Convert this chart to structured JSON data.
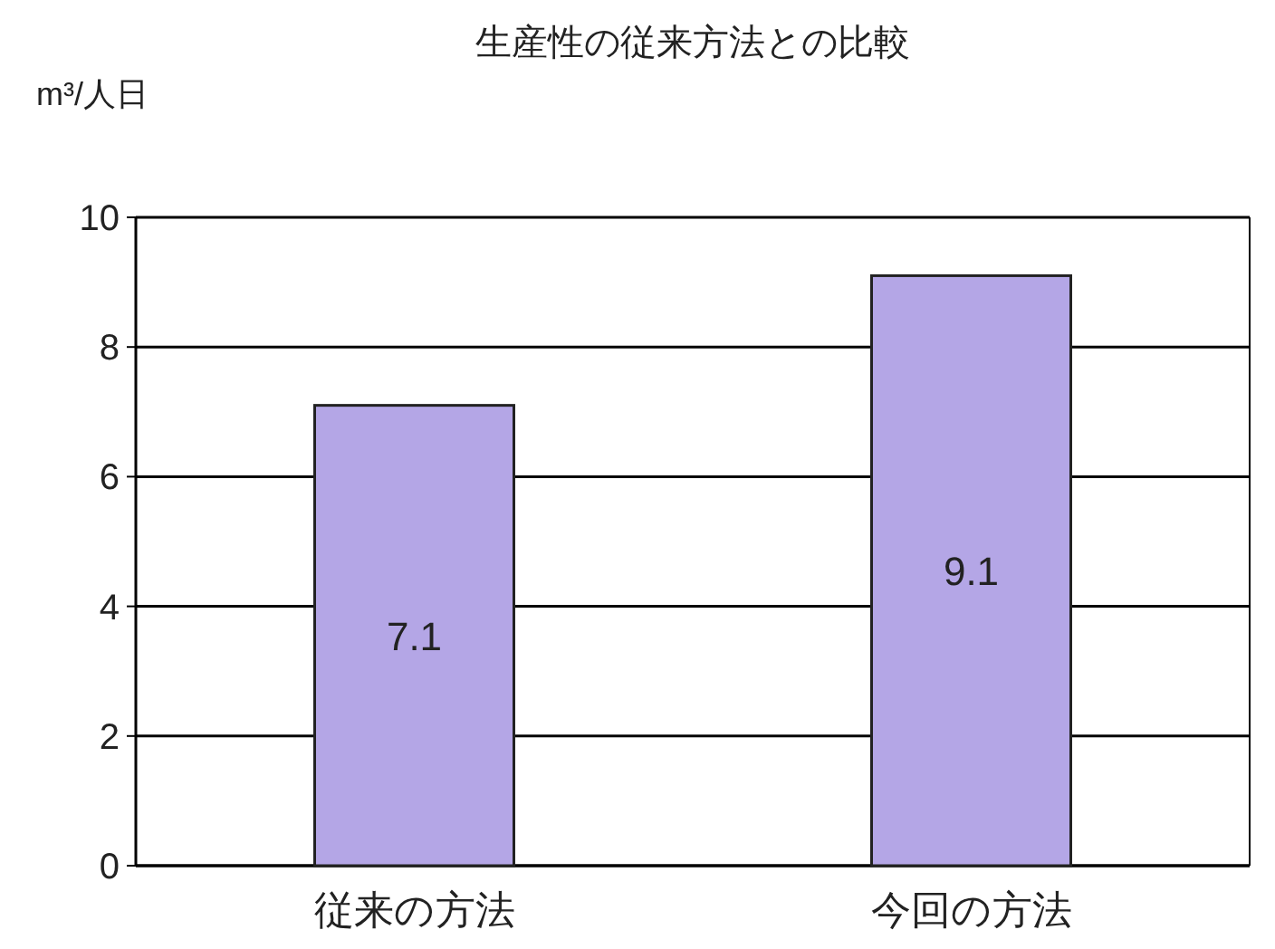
{
  "chart_data": {
    "type": "bar",
    "title": "生産性の従来方法との比較",
    "ylabel": "m³/人日",
    "categories": [
      "従来の方法",
      "今回の方法"
    ],
    "values": [
      7.1,
      9.1
    ],
    "color": "#b4a6e6",
    "ylim": [
      0,
      10
    ],
    "yticks": [
      0,
      2,
      4,
      6,
      8,
      10
    ],
    "grid": "y",
    "data_labels": true
  }
}
